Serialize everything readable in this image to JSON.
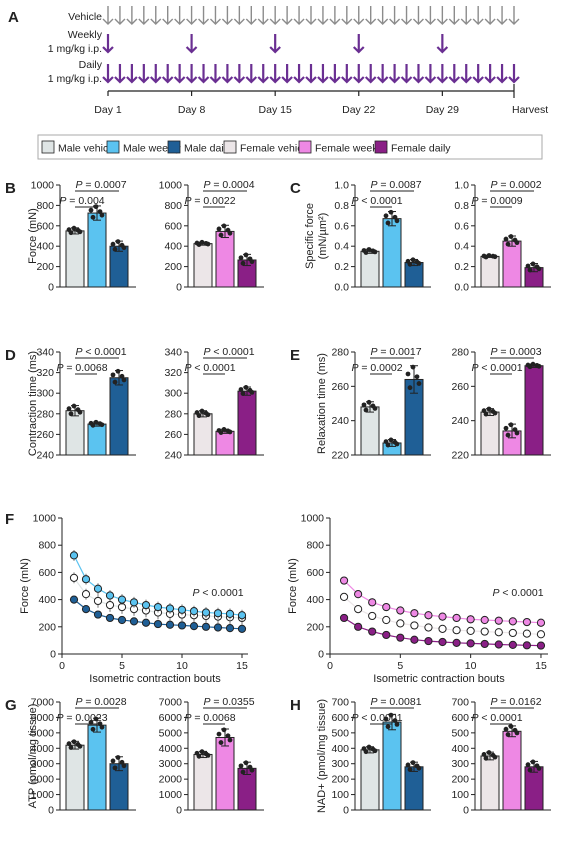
{
  "colors": {
    "male_vehicle": "#dfe5e5",
    "male_weekly": "#5bc3f0",
    "male_daily": "#1f5f96",
    "female_vehicle": "#ece6e8",
    "female_weekly": "#ee88e4",
    "female_daily": "#8a1f86",
    "arrow_gray": "#8c8c8c",
    "arrow_purple": "#6a2f92"
  },
  "schedule": {
    "panel_label": "A",
    "rows": [
      {
        "label_lines": [
          "Vehicle"
        ],
        "arrows": "every-day",
        "color": "arrow_gray"
      },
      {
        "label_lines": [
          "Weekly",
          "1 mg/kg i.p."
        ],
        "arrows": "weekly",
        "color": "arrow_purple"
      },
      {
        "label_lines": [
          "Daily",
          "1 mg/kg i.p."
        ],
        "arrows": "every-day",
        "color": "arrow_purple"
      }
    ],
    "day_ticks": [
      "Day 1",
      "Day 8",
      "Day 15",
      "Day 22",
      "Day 29"
    ],
    "end_label": "Harvest"
  },
  "legend": [
    {
      "label": "Male vehicle",
      "color": "male_vehicle"
    },
    {
      "label": "Male weekly",
      "color": "male_weekly"
    },
    {
      "label": "Male daily",
      "color": "male_daily"
    },
    {
      "label": "Female vehicle",
      "color": "female_vehicle"
    },
    {
      "label": "Female weekly",
      "color": "female_weekly"
    },
    {
      "label": "Female daily",
      "color": "female_daily"
    }
  ],
  "chart_data": [
    {
      "panel": "B",
      "type": "bar",
      "ylabel": "Force (mN)",
      "ylim": [
        0,
        1000
      ],
      "yticks": [
        0,
        200,
        400,
        600,
        800,
        1000
      ],
      "groups": [
        {
          "series": [
            "male_vehicle",
            "male_weekly",
            "male_daily"
          ],
          "values": [
            550,
            725,
            400
          ],
          "errors": [
            30,
            70,
            50
          ],
          "brackets": [
            {
              "from": 0,
              "to": 2,
              "label": "P = 0.0007"
            },
            {
              "from": 0,
              "to": 1,
              "label": "P = 0.004"
            }
          ]
        },
        {
          "series": [
            "female_vehicle",
            "female_weekly",
            "female_daily"
          ],
          "values": [
            425,
            545,
            265
          ],
          "errors": [
            15,
            60,
            55
          ],
          "brackets": [
            {
              "from": 0,
              "to": 2,
              "label": "P = 0.0004"
            },
            {
              "from": 0,
              "to": 1,
              "label": "P = 0.0022"
            }
          ]
        }
      ]
    },
    {
      "panel": "C",
      "type": "bar",
      "ylabel": [
        "Specific force",
        "(mN/µm²)"
      ],
      "ylim": [
        0,
        1.0
      ],
      "yticks": [
        0.0,
        0.2,
        0.4,
        0.6,
        0.8,
        1.0
      ],
      "groups": [
        {
          "series": [
            "male_vehicle",
            "male_weekly",
            "male_daily"
          ],
          "values": [
            0.35,
            0.67,
            0.24
          ],
          "errors": [
            0.02,
            0.07,
            0.03
          ],
          "brackets": [
            {
              "from": 0,
              "to": 2,
              "label": "P = 0.0087"
            },
            {
              "from": 0,
              "to": 1,
              "label": "P < 0.0001"
            }
          ]
        },
        {
          "series": [
            "female_vehicle",
            "female_weekly",
            "female_daily"
          ],
          "values": [
            0.3,
            0.45,
            0.19
          ],
          "errors": [
            0.01,
            0.05,
            0.04
          ],
          "brackets": [
            {
              "from": 0,
              "to": 2,
              "label": "P = 0.0002"
            },
            {
              "from": 0,
              "to": 1,
              "label": "P = 0.0009"
            }
          ]
        }
      ]
    },
    {
      "panel": "D",
      "type": "bar",
      "ylabel": "Contraction time (ms)",
      "ylim": [
        240,
        340
      ],
      "yticks": [
        240,
        260,
        280,
        300,
        320,
        340
      ],
      "groups": [
        {
          "series": [
            "male_vehicle",
            "male_weekly",
            "male_daily"
          ],
          "values": [
            283,
            270,
            315
          ],
          "errors": [
            5,
            2,
            7
          ],
          "brackets": [
            {
              "from": 0,
              "to": 2,
              "label": "P < 0.0001"
            },
            {
              "from": 0,
              "to": 1,
              "label": "P = 0.0068"
            }
          ]
        },
        {
          "series": [
            "female_vehicle",
            "female_weekly",
            "female_daily"
          ],
          "values": [
            280,
            263,
            302
          ],
          "errors": [
            3,
            2,
            4
          ],
          "brackets": [
            {
              "from": 0,
              "to": 2,
              "label": "P < 0.0001"
            },
            {
              "from": 0,
              "to": 1,
              "label": "P < 0.0001"
            }
          ]
        }
      ]
    },
    {
      "panel": "E",
      "type": "bar",
      "ylabel": "Relaxation time (ms)",
      "ylim": [
        220,
        280
      ],
      "yticks": [
        220,
        240,
        260,
        280
      ],
      "groups": [
        {
          "series": [
            "male_vehicle",
            "male_weekly",
            "male_daily"
          ],
          "values": [
            248,
            227,
            264
          ],
          "errors": [
            3,
            2,
            8
          ],
          "brackets": [
            {
              "from": 0,
              "to": 2,
              "label": "P = 0.0017"
            },
            {
              "from": 0,
              "to": 1,
              "label": "P = 0.0002"
            }
          ]
        },
        {
          "series": [
            "female_vehicle",
            "female_weekly",
            "female_daily"
          ],
          "values": [
            245,
            234,
            272
          ],
          "errors": [
            2,
            4,
            1
          ],
          "brackets": [
            {
              "from": 0,
              "to": 2,
              "label": "P = 0.0003"
            },
            {
              "from": 0,
              "to": 1,
              "label": "P < 0.0001"
            }
          ]
        }
      ]
    },
    {
      "panel": "F",
      "type": "scatter",
      "ylabel": "Force (mN)",
      "xlabel": "Isometric contraction bouts",
      "ylim": [
        0,
        1000
      ],
      "yticks": [
        0,
        200,
        400,
        600,
        800,
        1000
      ],
      "xlim": [
        0,
        15.5
      ],
      "xticks": [
        0,
        5,
        10,
        15
      ],
      "groups": [
        {
          "ptext": "P < 0.0001",
          "x": [
            1,
            2,
            3,
            4,
            5,
            6,
            7,
            8,
            9,
            10,
            11,
            12,
            13,
            14,
            15
          ],
          "series": [
            {
              "color": "male_vehicle",
              "open": true,
              "values": [
                560,
                440,
                390,
                360,
                345,
                330,
                320,
                305,
                295,
                290,
                285,
                280,
                275,
                270,
                265
              ],
              "errors": [
                40,
                40,
                50,
                50,
                50,
                50,
                50,
                50,
                50,
                50,
                50,
                50,
                50,
                50,
                50
              ]
            },
            {
              "color": "male_weekly",
              "open": false,
              "values": [
                725,
                550,
                480,
                430,
                400,
                380,
                360,
                345,
                335,
                325,
                315,
                305,
                300,
                295,
                285
              ],
              "errors": [
                40,
                40,
                40,
                40,
                40,
                40,
                40,
                40,
                40,
                40,
                40,
                40,
                40,
                40,
                40
              ]
            },
            {
              "color": "male_daily",
              "open": false,
              "values": [
                400,
                330,
                290,
                265,
                250,
                240,
                230,
                220,
                215,
                210,
                205,
                200,
                195,
                190,
                185
              ],
              "errors": [
                20,
                20,
                20,
                20,
                20,
                20,
                20,
                20,
                20,
                20,
                20,
                20,
                20,
                20,
                20
              ]
            }
          ]
        },
        {
          "ptext": "P < 0.0001",
          "x": [
            1,
            2,
            3,
            4,
            5,
            6,
            7,
            8,
            9,
            10,
            11,
            12,
            13,
            14,
            15
          ],
          "series": [
            {
              "color": "female_vehicle",
              "open": true,
              "values": [
                420,
                330,
                280,
                250,
                225,
                210,
                195,
                185,
                175,
                170,
                165,
                160,
                155,
                150,
                145
              ],
              "errors": [
                20,
                20,
                20,
                20,
                20,
                20,
                20,
                20,
                20,
                20,
                20,
                20,
                20,
                20,
                20
              ]
            },
            {
              "color": "female_weekly",
              "open": false,
              "values": [
                540,
                440,
                380,
                345,
                320,
                300,
                285,
                275,
                265,
                255,
                250,
                245,
                240,
                235,
                230
              ],
              "errors": [
                30,
                30,
                30,
                30,
                30,
                30,
                30,
                30,
                30,
                30,
                30,
                30,
                30,
                30,
                30
              ]
            },
            {
              "color": "female_daily",
              "open": false,
              "values": [
                265,
                200,
                165,
                140,
                120,
                105,
                95,
                88,
                82,
                78,
                74,
                70,
                67,
                64,
                62
              ],
              "errors": [
                15,
                15,
                15,
                15,
                15,
                15,
                15,
                15,
                15,
                15,
                15,
                15,
                15,
                15,
                15
              ]
            }
          ]
        }
      ]
    },
    {
      "panel": "G",
      "type": "bar",
      "ylabel": "ATP (pmol/mg tissue)",
      "ylim": [
        0,
        7000
      ],
      "yticks": [
        0,
        1000,
        2000,
        3000,
        4000,
        5000,
        6000,
        7000
      ],
      "groups": [
        {
          "series": [
            "male_vehicle",
            "male_weekly",
            "male_daily"
          ],
          "values": [
            4200,
            5500,
            3000
          ],
          "errors": [
            250,
            450,
            450
          ],
          "brackets": [
            {
              "from": 0,
              "to": 2,
              "label": "P = 0.0028"
            },
            {
              "from": 0,
              "to": 1,
              "label": "P = 0.0023"
            }
          ]
        },
        {
          "series": [
            "female_vehicle",
            "female_weekly",
            "female_daily"
          ],
          "values": [
            3600,
            4700,
            2700
          ],
          "errors": [
            200,
            550,
            400
          ],
          "brackets": [
            {
              "from": 0,
              "to": 2,
              "label": "P = 0.0355"
            },
            {
              "from": 0,
              "to": 1,
              "label": "P = 0.0068"
            }
          ]
        }
      ]
    },
    {
      "panel": "H",
      "type": "bar",
      "ylabel": "NAD+ (pmol/mg tissue)",
      "ylim": [
        0,
        700
      ],
      "yticks": [
        0,
        100,
        200,
        300,
        400,
        500,
        600,
        700
      ],
      "groups": [
        {
          "series": [
            "male_vehicle",
            "male_weekly",
            "male_daily"
          ],
          "values": [
            390,
            570,
            280
          ],
          "errors": [
            20,
            50,
            30
          ],
          "brackets": [
            {
              "from": 0,
              "to": 2,
              "label": "P = 0.0081"
            },
            {
              "from": 0,
              "to": 1,
              "label": "P < 0.0001"
            }
          ]
        },
        {
          "series": [
            "female_vehicle",
            "female_weekly",
            "female_daily"
          ],
          "values": [
            350,
            510,
            280
          ],
          "errors": [
            25,
            35,
            35
          ],
          "brackets": [
            {
              "from": 0,
              "to": 2,
              "label": "P = 0.0162"
            },
            {
              "from": 0,
              "to": 1,
              "label": "P < 0.0001"
            }
          ]
        }
      ]
    }
  ]
}
